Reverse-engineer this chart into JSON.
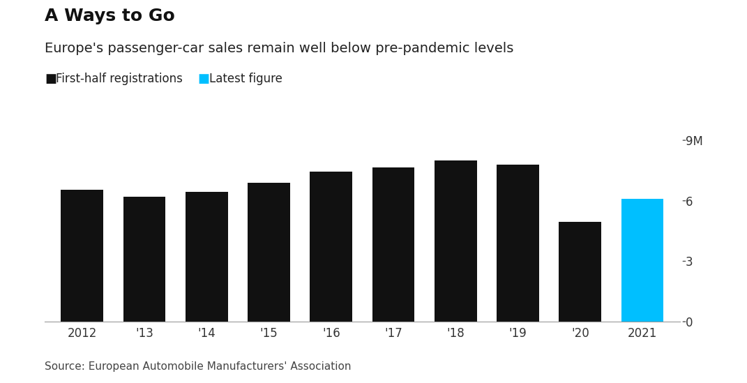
{
  "title": "A Ways to Go",
  "subtitle": "Europe's passenger-car sales remain well below pre-pandemic levels",
  "legend_labels": [
    "First-half registrations",
    "Latest figure"
  ],
  "legend_colors": [
    "#111111",
    "#00BFFF"
  ],
  "source": "Source: European Automobile Manufacturers' Association",
  "years": [
    "2012",
    "'13",
    "'14",
    "'15",
    "'16",
    "'17",
    "'18",
    "'19",
    "'20",
    "2021"
  ],
  "values": [
    6.55,
    6.2,
    6.45,
    6.9,
    7.45,
    7.65,
    8.0,
    7.8,
    4.95,
    6.1
  ],
  "colors": [
    "#111111",
    "#111111",
    "#111111",
    "#111111",
    "#111111",
    "#111111",
    "#111111",
    "#111111",
    "#111111",
    "#00BFFF"
  ],
  "ylim": [
    0,
    9.5
  ],
  "yticks": [
    0,
    3,
    6,
    9
  ],
  "ytick_labels": [
    "0",
    "3",
    "6",
    "9M"
  ],
  "background_color": "#ffffff",
  "title_fontsize": 18,
  "subtitle_fontsize": 14,
  "tick_fontsize": 12,
  "source_fontsize": 11,
  "bar_width": 0.68
}
